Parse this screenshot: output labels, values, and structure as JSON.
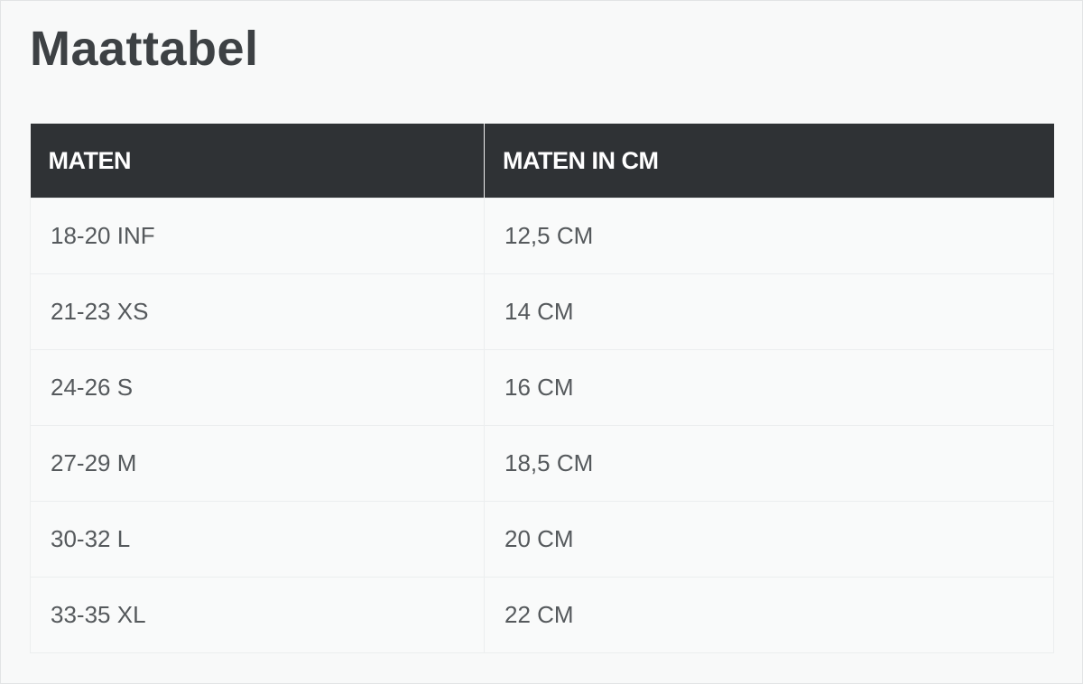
{
  "title": "Maattabel",
  "table": {
    "headers": [
      "MATEN",
      "MATEN IN CM"
    ],
    "rows": [
      [
        "18-20 INF",
        "12,5 CM"
      ],
      [
        "21-23 XS",
        "14 CM"
      ],
      [
        "24-26 S",
        "16 CM"
      ],
      [
        "27-29 M",
        "18,5 CM"
      ],
      [
        "30-32 L",
        "20 CM"
      ],
      [
        "33-35 XL",
        "22 CM"
      ]
    ]
  }
}
